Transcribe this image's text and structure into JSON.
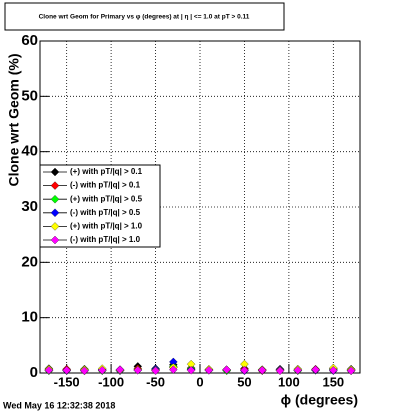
{
  "chart_data": {
    "type": "scatter",
    "title": "Clone wrt Geom for Primary vs φ (degrees) at | η | <= 1.0 at pT > 0.11",
    "x_label": "ϕ (degrees)",
    "y_label": "Clone wrt Geom (%)",
    "timestamp": "Wed May 16 12:32:38 2018",
    "x": [
      -170,
      -150,
      -130,
      -110,
      -90,
      -70,
      -50,
      -30,
      -10,
      10,
      30,
      50,
      70,
      90,
      110,
      130,
      150,
      170
    ],
    "series": [
      {
        "name": "(+) with pT/|q| > 0.1",
        "color": "#000000",
        "values": [
          0.8,
          0.6,
          0.7,
          0.5,
          0.6,
          1.2,
          0.8,
          1.5,
          0.7,
          0.6,
          0.5,
          0.8,
          0.6,
          0.7,
          0.5,
          0.6,
          0.8,
          0.7
        ]
      },
      {
        "name": "(-) with pT/|q| > 0.1",
        "color": "#ff0000",
        "values": [
          0.5,
          0.7,
          0.4,
          0.6,
          0.5,
          0.8,
          0.6,
          1.0,
          0.9,
          0.5,
          0.6,
          0.7,
          0.4,
          0.6,
          0.5,
          0.7,
          0.6,
          0.5
        ]
      },
      {
        "name": "(+) with pT/|q| > 0.5",
        "color": "#00ff00",
        "values": [
          0.4,
          0.5,
          0.6,
          0.4,
          0.5,
          0.6,
          0.5,
          1.2,
          0.8,
          0.6,
          0.4,
          0.5,
          0.6,
          0.5,
          0.4,
          0.5,
          0.6,
          0.4
        ]
      },
      {
        "name": "(-) with pT/|q| > 0.5",
        "color": "#0000ff",
        "values": [
          0.6,
          0.4,
          0.5,
          0.6,
          0.4,
          0.5,
          0.7,
          2.0,
          0.6,
          0.5,
          0.6,
          0.4,
          0.5,
          0.6,
          0.7,
          0.5,
          0.4,
          0.6
        ]
      },
      {
        "name": "(+) with pT/|q| > 1.0",
        "color": "#ffff00",
        "values": [
          0.7,
          0.5,
          0.6,
          0.8,
          0.5,
          0.6,
          0.5,
          1.0,
          1.6,
          0.7,
          0.6,
          1.6,
          0.6,
          0.5,
          0.7,
          0.6,
          0.9,
          0.6
        ]
      },
      {
        "name": "(-) with pT/|q| > 1.0",
        "color": "#ff00ff",
        "values": [
          0.5,
          0.5,
          0.4,
          0.5,
          0.6,
          0.5,
          0.4,
          0.6,
          0.5,
          0.5,
          0.6,
          0.5,
          0.5,
          0.4,
          0.5,
          0.6,
          0.5,
          0.4
        ]
      }
    ],
    "xlim": [
      -180,
      180
    ],
    "ylim": [
      0,
      60
    ],
    "xticks": [
      -150,
      -100,
      -50,
      0,
      50,
      100,
      150
    ],
    "yticks": [
      0,
      10,
      20,
      30,
      40,
      50,
      60
    ],
    "grid": true,
    "legend": "center-left"
  }
}
